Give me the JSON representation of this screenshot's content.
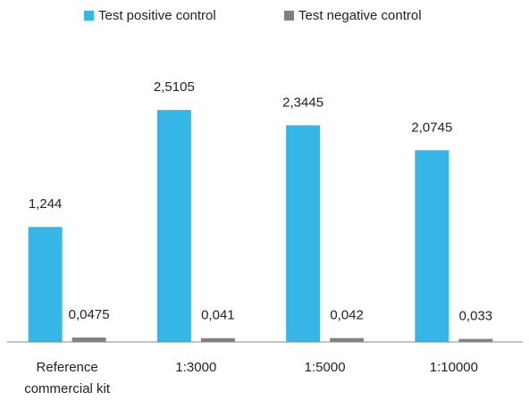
{
  "chart_data": {
    "type": "bar",
    "categories": [
      "Reference commercial kit",
      "1:3000",
      "1:5000",
      "1:10000"
    ],
    "series": [
      {
        "name": "Test positive control",
        "color": "#35b6e6",
        "values": [
          1.244,
          2.5105,
          2.3445,
          2.0745
        ],
        "value_labels": [
          "1,244",
          "2,5105",
          "2,3445",
          "2,0745"
        ]
      },
      {
        "name": "Test negative control",
        "color": "#808080",
        "values": [
          0.0475,
          0.041,
          0.042,
          0.033
        ],
        "value_labels": [
          "0,0475",
          "0,041",
          "0,042",
          "0,033"
        ]
      }
    ]
  }
}
